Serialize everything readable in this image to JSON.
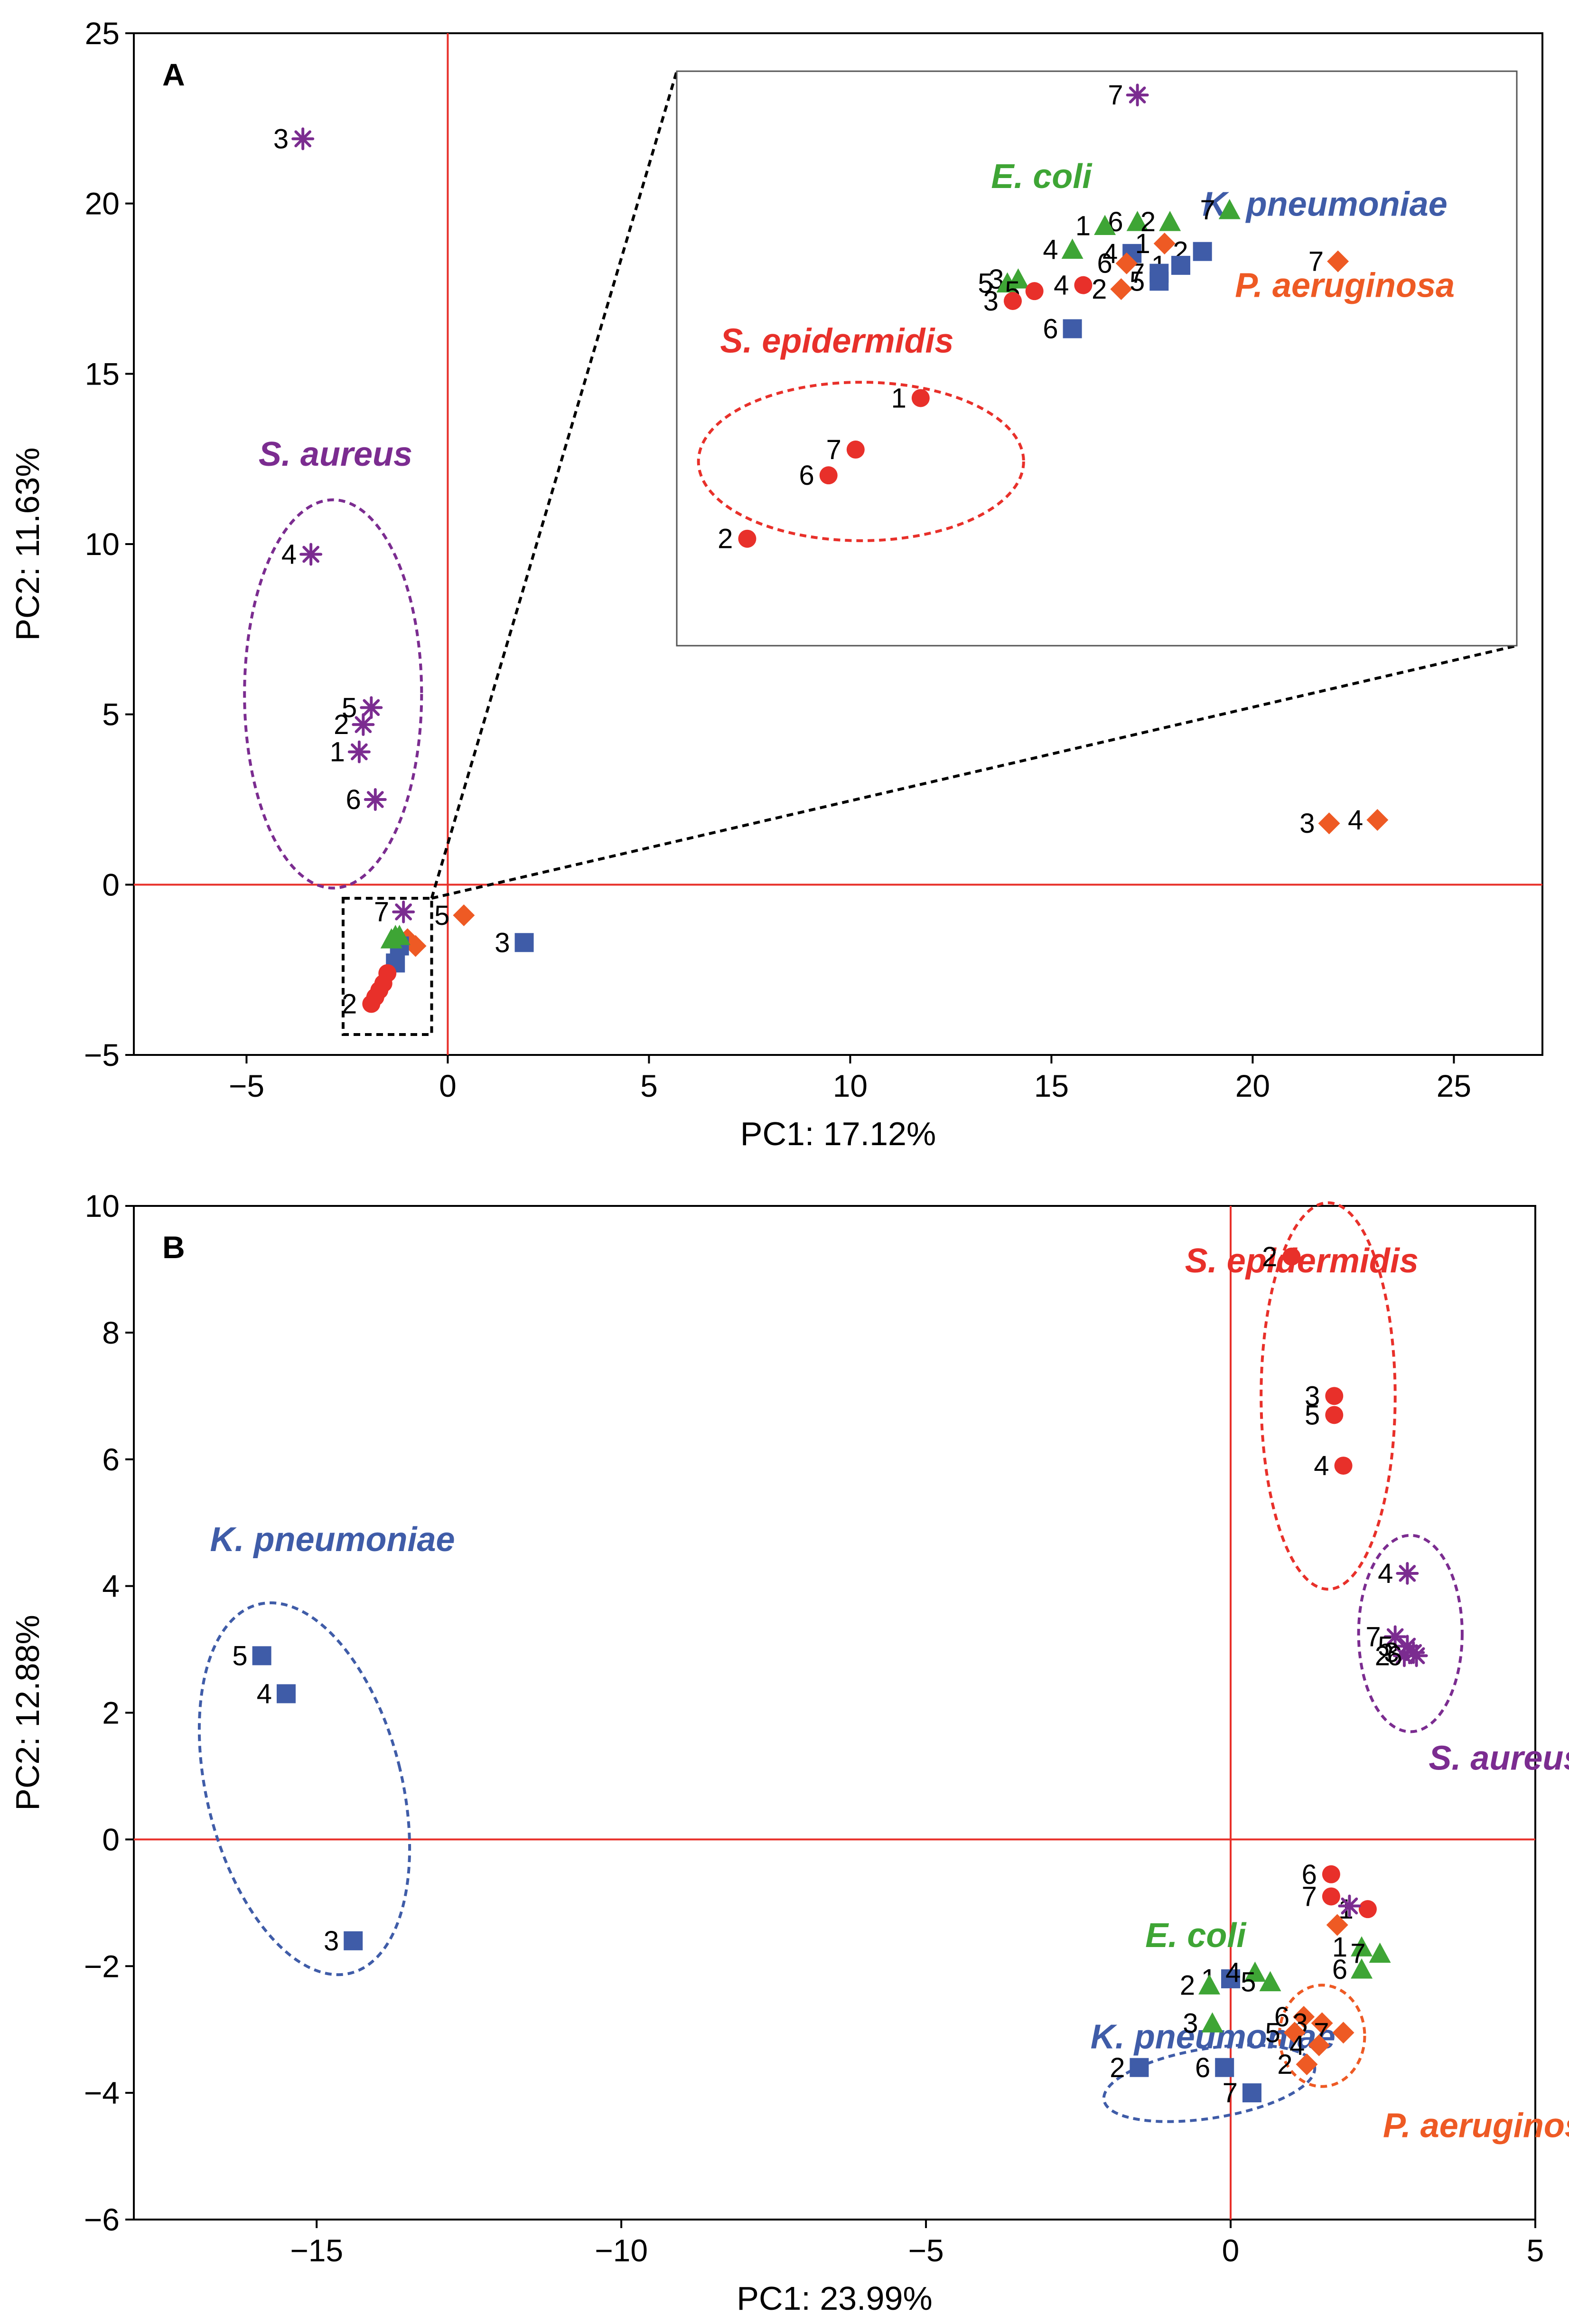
{
  "colors": {
    "S. aureus": "#7B2C90",
    "S. epidermidis": "#E8302A",
    "E. coli": "#3EA535",
    "K. pneumoniae": "#3F5CA8",
    "P. aeruginosa": "#EE5A24",
    "zero_line": "#E8302A"
  },
  "chart_data": [
    {
      "type": "scatter",
      "panel": "A",
      "xlabel": "PC1: 17.12%",
      "ylabel": "PC2: 11.63%",
      "xlim": [
        -7.8,
        27.2
      ],
      "ylim": [
        -5,
        25
      ],
      "xticks": [
        -5,
        0,
        5,
        10,
        15,
        20,
        25
      ],
      "yticks": [
        -5,
        0,
        5,
        10,
        15,
        20,
        25
      ],
      "series": [
        {
          "name": "S. aureus",
          "marker": "star",
          "points": [
            {
              "id": "3",
              "x": -3.6,
              "y": 21.9
            },
            {
              "id": "4",
              "x": -3.4,
              "y": 9.7
            },
            {
              "id": "5",
              "x": -1.9,
              "y": 5.2
            },
            {
              "id": "2",
              "x": -2.1,
              "y": 4.7
            },
            {
              "id": "1",
              "x": -2.2,
              "y": 3.9
            },
            {
              "id": "6",
              "x": -1.8,
              "y": 2.5
            },
            {
              "id": "7",
              "x": -1.1,
              "y": -0.8
            }
          ]
        },
        {
          "name": "P. aeruginosa",
          "marker": "diamond",
          "points": [
            {
              "id": "3",
              "x": 21.9,
              "y": 1.8
            },
            {
              "id": "4",
              "x": 23.1,
              "y": 1.9
            },
            {
              "id": "5",
              "x": 0.4,
              "y": -0.9
            },
            {
              "id": "",
              "x": -0.8,
              "y": -1.8
            },
            {
              "id": "",
              "x": -1.0,
              "y": -1.6
            }
          ]
        },
        {
          "name": "K. pneumoniae",
          "marker": "square",
          "points": [
            {
              "id": "3",
              "x": 1.9,
              "y": -1.7
            },
            {
              "id": "",
              "x": -1.3,
              "y": -2.3
            },
            {
              "id": "",
              "x": -1.2,
              "y": -1.8
            }
          ]
        },
        {
          "name": "E. coli",
          "marker": "triangle",
          "points": [
            {
              "id": "",
              "x": -1.3,
              "y": -1.5
            },
            {
              "id": "",
              "x": -1.4,
              "y": -1.6
            },
            {
              "id": "",
              "x": -1.2,
              "y": -1.5
            }
          ]
        },
        {
          "name": "S. epidermidis",
          "marker": "circle",
          "points": [
            {
              "id": "",
              "x": -1.5,
              "y": -2.6
            },
            {
              "id": "",
              "x": -1.6,
              "y": -2.9
            },
            {
              "id": "",
              "x": -1.7,
              "y": -3.1
            },
            {
              "id": "",
              "x": -1.8,
              "y": -3.3
            },
            {
              "id": "2",
              "x": -1.9,
              "y": -3.5
            }
          ]
        }
      ],
      "species_labels": [
        {
          "text": "S. aureus",
          "series": "S. aureus",
          "x": -4.7,
          "y": 12.3
        }
      ],
      "ellipses": [
        {
          "series": "S. aureus",
          "cx": -2.85,
          "cy": 5.6,
          "rx": 2.2,
          "ry": 5.7
        }
      ],
      "zoom_box": {
        "x0": -2.6,
        "x1": -0.4,
        "y0": -4.4,
        "y1": -0.4
      },
      "inset": {
        "xlim": [
          -2.0,
          -0.45
        ],
        "ylim": [
          -3.6,
          -0.7
        ],
        "series": [
          {
            "name": "S. aureus",
            "marker": "star",
            "points": [
              {
                "id": "7",
                "x": -1.15,
                "y": -0.82
              }
            ]
          },
          {
            "name": "E. coli",
            "marker": "triangle",
            "points": [
              {
                "id": "7",
                "x": -0.98,
                "y": -1.4
              },
              {
                "id": "6",
                "x": -1.15,
                "y": -1.46
              },
              {
                "id": "2",
                "x": -1.09,
                "y": -1.46
              },
              {
                "id": "1",
                "x": -1.21,
                "y": -1.48
              },
              {
                "id": "4",
                "x": -1.27,
                "y": -1.6
              },
              {
                "id": "3",
                "x": -1.37,
                "y": -1.75
              },
              {
                "id": "5",
                "x": -1.39,
                "y": -1.77
              }
            ]
          },
          {
            "name": "K. pneumoniae",
            "marker": "square",
            "points": [
              {
                "id": "4",
                "x": -1.16,
                "y": -1.62
              },
              {
                "id": "2",
                "x": -1.03,
                "y": -1.61
              },
              {
                "id": "1",
                "x": -1.07,
                "y": -1.68
              },
              {
                "id": "7",
                "x": -1.11,
                "y": -1.72
              },
              {
                "id": "5",
                "x": -1.11,
                "y": -1.76
              },
              {
                "id": "6",
                "x": -1.27,
                "y": -2.0
              }
            ]
          },
          {
            "name": "P. aeruginosa",
            "marker": "diamond",
            "points": [
              {
                "id": "1",
                "x": -1.1,
                "y": -1.57
              },
              {
                "id": "6",
                "x": -1.17,
                "y": -1.67
              },
              {
                "id": "2",
                "x": -1.18,
                "y": -1.8
              },
              {
                "id": "7",
                "x": -0.78,
                "y": -1.66
              }
            ]
          },
          {
            "name": "S. epidermidis",
            "marker": "circle",
            "points": [
              {
                "id": "4",
                "x": -1.25,
                "y": -1.78
              },
              {
                "id": "5",
                "x": -1.34,
                "y": -1.81
              },
              {
                "id": "3",
                "x": -1.38,
                "y": -1.86
              },
              {
                "id": "1",
                "x": -1.55,
                "y": -2.35
              },
              {
                "id": "7",
                "x": -1.67,
                "y": -2.61
              },
              {
                "id": "6",
                "x": -1.72,
                "y": -2.74
              },
              {
                "id": "2",
                "x": -1.87,
                "y": -3.06
              }
            ]
          }
        ],
        "species_labels": [
          {
            "text": "E. coli",
            "series": "E. coli",
            "x": -1.42,
            "y": -1.29
          },
          {
            "text": "K. pneumoniae",
            "series": "K. pneumoniae",
            "x": -1.03,
            "y": -1.43
          },
          {
            "text": "P. aeruginosa",
            "series": "P. aeruginosa",
            "x": -0.97,
            "y": -1.84
          },
          {
            "text": "S. epidermidis",
            "series": "S. epidermidis",
            "x": -1.92,
            "y": -2.12
          }
        ],
        "ellipses": [
          {
            "series": "S. epidermidis",
            "cx": -1.66,
            "cy": -2.67,
            "rx": 0.3,
            "ry": 0.4
          }
        ]
      }
    },
    {
      "type": "scatter",
      "panel": "B",
      "xlabel": "PC1: 23.99%",
      "ylabel": "PC2: 12.88%",
      "xlim": [
        -18,
        5
      ],
      "ylim": [
        -6,
        10
      ],
      "xticks": [
        -15,
        -10,
        -5,
        0,
        5
      ],
      "yticks": [
        -6,
        -4,
        -2,
        0,
        2,
        4,
        6,
        8,
        10
      ],
      "series": [
        {
          "name": "S. epidermidis",
          "marker": "circle",
          "points": [
            {
              "id": "2",
              "x": 1.0,
              "y": 9.2
            },
            {
              "id": "3",
              "x": 1.7,
              "y": 7.0
            },
            {
              "id": "5",
              "x": 1.7,
              "y": 6.7
            },
            {
              "id": "4",
              "x": 1.85,
              "y": 5.9
            },
            {
              "id": "6",
              "x": 1.65,
              "y": -0.55
            },
            {
              "id": "7",
              "x": 1.65,
              "y": -0.9
            },
            {
              "id": "1",
              "x": 2.25,
              "y": -1.1
            }
          ]
        },
        {
          "name": "S. aureus",
          "marker": "star",
          "points": [
            {
              "id": "4",
              "x": 2.9,
              "y": 4.2
            },
            {
              "id": "7",
              "x": 2.7,
              "y": 3.2
            },
            {
              "id": "5",
              "x": 2.9,
              "y": 3.05
            },
            {
              "id": "3",
              "x": 3.0,
              "y": 2.95
            },
            {
              "id": "2",
              "x": 2.85,
              "y": 2.9
            },
            {
              "id": "6",
              "x": 3.05,
              "y": 2.9
            },
            {
              "id": "",
              "x": 1.95,
              "y": -1.05
            }
          ]
        },
        {
          "name": "K. pneumoniae",
          "marker": "square",
          "points": [
            {
              "id": "5",
              "x": -15.9,
              "y": 2.9
            },
            {
              "id": "4",
              "x": -15.5,
              "y": 2.3
            },
            {
              "id": "3",
              "x": -14.4,
              "y": -1.6
            },
            {
              "id": "1",
              "x": 0.0,
              "y": -2.2
            },
            {
              "id": "2",
              "x": -1.5,
              "y": -3.6
            },
            {
              "id": "6",
              "x": -0.1,
              "y": -3.6
            },
            {
              "id": "7",
              "x": 0.35,
              "y": -4.0
            }
          ]
        },
        {
          "name": "E. coli",
          "marker": "triangle",
          "points": [
            {
              "id": "2",
              "x": -0.35,
              "y": -2.3
            },
            {
              "id": "3",
              "x": -0.3,
              "y": -2.9
            },
            {
              "id": "4",
              "x": 0.4,
              "y": -2.1
            },
            {
              "id": "5",
              "x": 0.65,
              "y": -2.25
            },
            {
              "id": "1",
              "x": 2.15,
              "y": -1.7
            },
            {
              "id": "7",
              "x": 2.45,
              "y": -1.8
            },
            {
              "id": "6",
              "x": 2.15,
              "y": -2.05
            }
          ]
        },
        {
          "name": "P. aeruginosa",
          "marker": "diamond",
          "points": [
            {
              "id": "",
              "x": 1.75,
              "y": -1.35
            },
            {
              "id": "6",
              "x": 1.2,
              "y": -2.8
            },
            {
              "id": "3",
              "x": 1.5,
              "y": -2.9
            },
            {
              "id": "7",
              "x": 1.85,
              "y": -3.05
            },
            {
              "id": "5",
              "x": 1.05,
              "y": -3.05
            },
            {
              "id": "4",
              "x": 1.45,
              "y": -3.25
            },
            {
              "id": "2",
              "x": 1.25,
              "y": -3.55
            }
          ]
        }
      ],
      "species_labels": [
        {
          "text": "S. epidermidis",
          "series": "S. epidermidis",
          "x": -0.75,
          "y": 8.95
        },
        {
          "text": "K. pneumoniae",
          "series": "K. pneumoniae",
          "x": -16.75,
          "y": 4.55
        },
        {
          "text": "S. aureus",
          "series": "S. aureus",
          "x": 3.25,
          "y": 1.1
        },
        {
          "text": "E. coli",
          "series": "E. coli",
          "x": -1.4,
          "y": -1.7
        },
        {
          "text": "K. pneumoniae",
          "series": "K. pneumoniae",
          "x": -2.3,
          "y": -3.3
        },
        {
          "text": "P. aeruginosa",
          "series": "P. aeruginosa",
          "x": 2.5,
          "y": -4.7
        }
      ],
      "ellipses": [
        {
          "series": "K. pneumoniae",
          "cx": -15.2,
          "cy": 0.8,
          "rx": 1.6,
          "ry": 3.0,
          "rotate": -14
        },
        {
          "series": "S. epidermidis",
          "cx": 1.6,
          "cy": 7.0,
          "rx": 1.1,
          "ry": 3.05
        },
        {
          "series": "S. aureus",
          "cx": 2.95,
          "cy": 3.25,
          "rx": 0.85,
          "ry": 1.55
        },
        {
          "series": "K. pneumoniae",
          "cx": -0.35,
          "cy": -3.85,
          "rx": 1.75,
          "ry": 0.55,
          "rotate": -9
        },
        {
          "series": "P. aeruginosa",
          "cx": 1.5,
          "cy": -3.1,
          "rx": 0.7,
          "ry": 0.8
        }
      ]
    }
  ]
}
